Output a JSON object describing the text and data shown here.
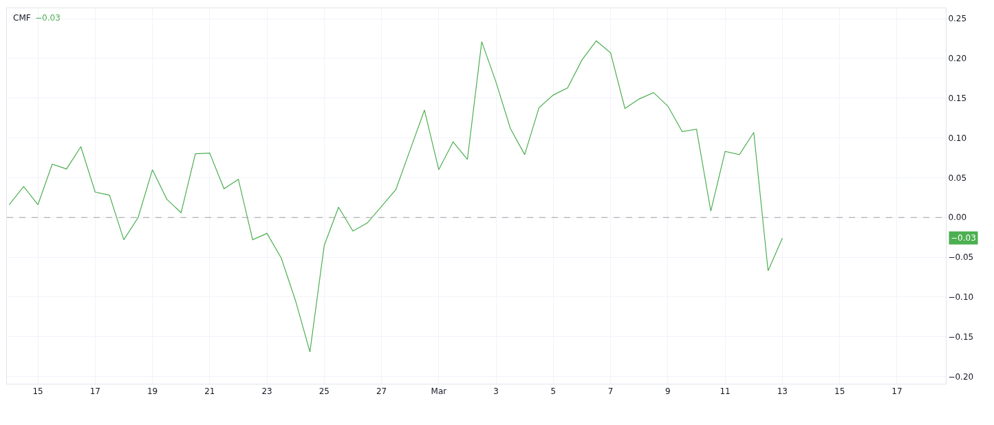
{
  "chart_data": {
    "type": "line",
    "title": "CMF",
    "x": [
      "--02-14T00:00",
      "--02-14T12:00",
      "--02-15T00:00",
      "--02-15T12:00",
      "--02-16T00:00",
      "--02-16T12:00",
      "--02-17T00:00",
      "--02-17T12:00",
      "--02-18T00:00",
      "--02-18T12:00",
      "--02-19T00:00",
      "--02-19T12:00",
      "--02-20T00:00",
      "--02-20T12:00",
      "--02-21T00:00",
      "--02-21T12:00",
      "--02-22T00:00",
      "--02-22T12:00",
      "--02-23T00:00",
      "--02-23T12:00",
      "--02-24T00:00",
      "--02-24T12:00",
      "--02-25T00:00",
      "--02-25T12:00",
      "--02-26T00:00",
      "--02-26T12:00",
      "--02-27T00:00",
      "--02-27T12:00",
      "--02-28T00:00",
      "--02-28T12:00",
      "--03-01T00:00",
      "--03-01T12:00",
      "--03-02T00:00",
      "--03-02T12:00",
      "--03-03T00:00",
      "--03-03T12:00",
      "--03-04T00:00",
      "--03-04T12:00",
      "--03-05T00:00",
      "--03-05T12:00",
      "--03-06T00:00",
      "--03-06T12:00",
      "--03-07T00:00",
      "--03-07T12:00",
      "--03-08T00:00",
      "--03-08T12:00",
      "--03-09T00:00",
      "--03-09T12:00",
      "--03-10T00:00",
      "--03-10T12:00",
      "--03-11T00:00",
      "--03-11T12:00",
      "--03-12T00:00",
      "--03-12T12:00",
      "--03-13T00:00"
    ],
    "series": [
      {
        "color": "#4caf50",
        "values": [
          0.016,
          0.039,
          0.016,
          0.067,
          0.061,
          0.089,
          0.032,
          0.028,
          -0.028,
          0.0,
          0.06,
          0.023,
          0.006,
          0.08,
          0.081,
          0.036,
          0.048,
          -0.028,
          -0.02,
          -0.051,
          -0.105,
          -0.169,
          -0.035,
          0.013,
          -0.017,
          -0.007,
          0.014,
          0.035,
          0.085,
          0.135,
          0.06,
          0.095,
          0.073,
          0.221,
          0.17,
          0.112,
          0.079,
          0.138,
          0.154,
          0.163,
          0.198,
          0.222,
          0.207,
          0.137,
          0.149,
          0.157,
          0.14,
          0.108,
          0.111,
          0.008,
          0.083,
          0.079,
          0.107,
          -0.067,
          -0.026
        ]
      }
    ],
    "xlim": [
      "--02-13T22:00",
      "--03-18T17:00"
    ],
    "xticks": [
      {
        "value": "--02-15",
        "label": "15"
      },
      {
        "value": "--02-17",
        "label": "17"
      },
      {
        "value": "--02-19",
        "label": "19"
      },
      {
        "value": "--02-21",
        "label": "21"
      },
      {
        "value": "--02-23",
        "label": "23"
      },
      {
        "value": "--02-25",
        "label": "25"
      },
      {
        "value": "--02-27",
        "label": "27"
      },
      {
        "value": "--03-01",
        "label": "Mar"
      },
      {
        "value": "--03-03",
        "label": "3"
      },
      {
        "value": "--03-05",
        "label": "5"
      },
      {
        "value": "--03-07",
        "label": "7"
      },
      {
        "value": "--03-09",
        "label": "9"
      },
      {
        "value": "--03-11",
        "label": "11"
      },
      {
        "value": "--03-13",
        "label": "13"
      },
      {
        "value": "--03-15",
        "label": "15"
      },
      {
        "value": "--03-17",
        "label": "17"
      }
    ],
    "ylim": [
      -0.209,
      0.263
    ],
    "yticks": [
      {
        "value": -0.2,
        "label": "−0.20"
      },
      {
        "value": -0.15,
        "label": "−0.15"
      },
      {
        "value": -0.1,
        "label": "−0.10"
      },
      {
        "value": -0.05,
        "label": "−0.05"
      },
      {
        "value": 0,
        "label": "0.00"
      },
      {
        "value": 0.05,
        "label": "0.05"
      },
      {
        "value": 0.1,
        "label": "0.10"
      },
      {
        "value": 0.15,
        "label": "0.15"
      },
      {
        "value": 0.2,
        "label": "0.20"
      },
      {
        "value": 0.25,
        "label": "0.25"
      }
    ],
    "ref_lines": [
      {
        "axis": "y",
        "value": 0,
        "color": "#9e9e9e",
        "line_style": "dashed"
      }
    ],
    "annotations": [
      "−0.03",
      "−0.03"
    ],
    "grid": true,
    "marker": "none",
    "line_style": "solid"
  }
}
